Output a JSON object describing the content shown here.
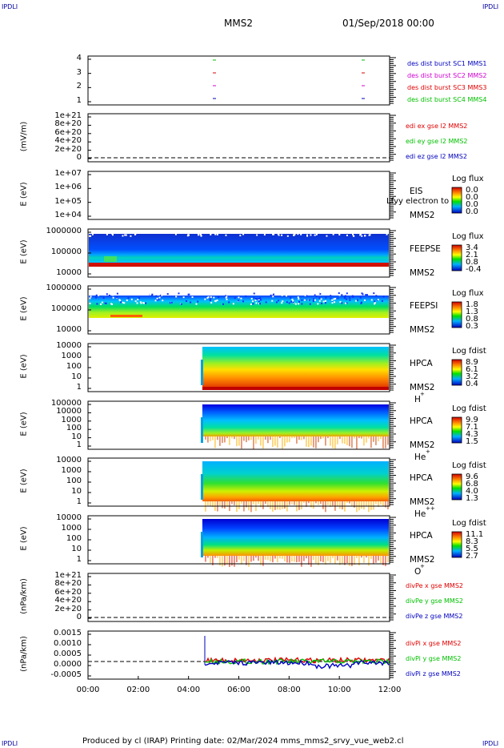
{
  "corners": {
    "tl": "IPDLI",
    "tr": "IPDLI",
    "bl": "IPDLI",
    "br": "IPDLI"
  },
  "header": {
    "spacecraft": "MMS2",
    "datetime": "01/Sep/2018 00:00"
  },
  "footer": {
    "text": "Produced by cl (IRAP)   Printing date: 02/Mar/2024   mms_mms2_srvy_vue_web2.cl"
  },
  "colors": {
    "red": "#e00000",
    "green": "#00c000",
    "blue": "#0000c0",
    "magenta": "#d000d0"
  },
  "chart_data": {
    "type": "multi-panel",
    "x_axis": {
      "ticks": [
        "00:00",
        "02:00",
        "04:00",
        "06:00",
        "08:00",
        "10:00",
        "12:00"
      ],
      "range": [
        "00:00",
        "12:00"
      ]
    },
    "panels": [
      {
        "id": "burst",
        "type": "scatter",
        "yticks": [
          "4",
          "3",
          "2",
          "1"
        ],
        "labels": [
          {
            "text": "des dist burst SC1 MMS1",
            "color": "#0000c0"
          },
          {
            "text": "des dist burst SC2 MMS2",
            "color": "#d000d0"
          },
          {
            "text": "des dist burst SC3 MMS3",
            "color": "#e00000"
          },
          {
            "text": "des dist burst SC4 MMS4",
            "color": "#00c000"
          }
        ]
      },
      {
        "id": "edi",
        "type": "line",
        "ylabel": "(mV/m)",
        "yticks": [
          "1e+21",
          "8e+20",
          "6e+20",
          "4e+20",
          "2e+20",
          "0"
        ],
        "labels": [
          {
            "text": "edi ex gse l2 MMS2",
            "color": "#e00000"
          },
          {
            "text": "edi ey gse l2 MMS2",
            "color": "#00c000"
          },
          {
            "text": "edi ez gse l2 MMS2",
            "color": "#0000c0"
          }
        ]
      },
      {
        "id": "eis",
        "type": "heatmap",
        "ylabel": "E (eV)",
        "yticks": [
          "1e+07",
          "1e+06",
          "1e+05",
          "1e+04"
        ],
        "inst": [
          "EIS",
          "MMS2"
        ],
        "overlay": "Lfvy electron to",
        "cb": {
          "title": "Log flux",
          "values": [
            "0.0",
            "0.0",
            "0.0",
            "0.0"
          ]
        }
      },
      {
        "id": "feepse",
        "type": "heatmap",
        "ylabel": "E (eV)",
        "yticks": [
          "1000000",
          "100000",
          "10000"
        ],
        "inst": [
          "FEEPSE",
          "MMS2"
        ],
        "cb": {
          "title": "Log flux",
          "values": [
            "3.4",
            "2.1",
            "0.8",
            "-0.4"
          ]
        }
      },
      {
        "id": "feepsi",
        "type": "heatmap",
        "ylabel": "E (eV)",
        "yticks": [
          "1000000",
          "100000",
          "10000"
        ],
        "inst": [
          "FEEPSI",
          "MMS2"
        ],
        "cb": {
          "title": "Log flux",
          "values": [
            "1.8",
            "1.3",
            "0.8",
            "0.3"
          ]
        }
      },
      {
        "id": "hpca_h",
        "type": "heatmap",
        "ylabel": "E (eV)",
        "yticks": [
          "10000",
          "1000",
          "100",
          "10",
          "1"
        ],
        "inst": [
          "HPCA",
          "MMS2"
        ],
        "species": "H",
        "sup": "+",
        "cb": {
          "title": "Log fdist",
          "values": [
            "8.9",
            "6.1",
            "3.2",
            "0.4"
          ]
        }
      },
      {
        "id": "hpca_he",
        "type": "heatmap",
        "ylabel": "E (eV)",
        "yticks": [
          "100000",
          "10000",
          "1000",
          "100",
          "10",
          "1"
        ],
        "inst": [
          "HPCA",
          "MMS2"
        ],
        "species": "He",
        "sup": "+",
        "cb": {
          "title": "Log fdist",
          "values": [
            "9.9",
            "7.1",
            "4.3",
            "1.5"
          ]
        }
      },
      {
        "id": "hpca_hepp",
        "type": "heatmap",
        "ylabel": "E (eV)",
        "yticks": [
          "10000",
          "1000",
          "100",
          "10",
          "1"
        ],
        "inst": [
          "HPCA",
          "MMS2"
        ],
        "species": "He",
        "sup": "++",
        "cb": {
          "title": "Log fdist",
          "values": [
            "9.6",
            "6.8",
            "4.0",
            "1.3"
          ]
        }
      },
      {
        "id": "hpca_o",
        "type": "heatmap",
        "ylabel": "E (eV)",
        "yticks": [
          "10000",
          "1000",
          "100",
          "10",
          "1"
        ],
        "inst": [
          "HPCA",
          "MMS2"
        ],
        "species": "O",
        "sup": "+",
        "cb": {
          "title": "Log fdist",
          "values": [
            "11.1",
            "8.3",
            "5.5",
            "2.7"
          ]
        }
      },
      {
        "id": "divpe",
        "type": "line",
        "ylabel": "(nPa/km)",
        "yticks": [
          "1e+21",
          "8e+20",
          "6e+20",
          "4e+20",
          "2e+20",
          "0"
        ],
        "labels": [
          {
            "text": "divPe x gse MMS2",
            "color": "#e00000"
          },
          {
            "text": "divPe y gse MMS2",
            "color": "#00c000"
          },
          {
            "text": "divPe z gse MMS2",
            "color": "#0000c0"
          }
        ]
      },
      {
        "id": "divpi",
        "type": "line",
        "ylabel": "(nPa/km)",
        "yticks": [
          "0.0015",
          "0.0010",
          "0.0005",
          "0.0000",
          "-0.0005"
        ],
        "labels": [
          {
            "text": "divPi x gse MMS2",
            "color": "#e00000"
          },
          {
            "text": "divPi y gse MMS2",
            "color": "#00c000"
          },
          {
            "text": "divPi z gse MMS2",
            "color": "#0000c0"
          }
        ]
      }
    ]
  }
}
